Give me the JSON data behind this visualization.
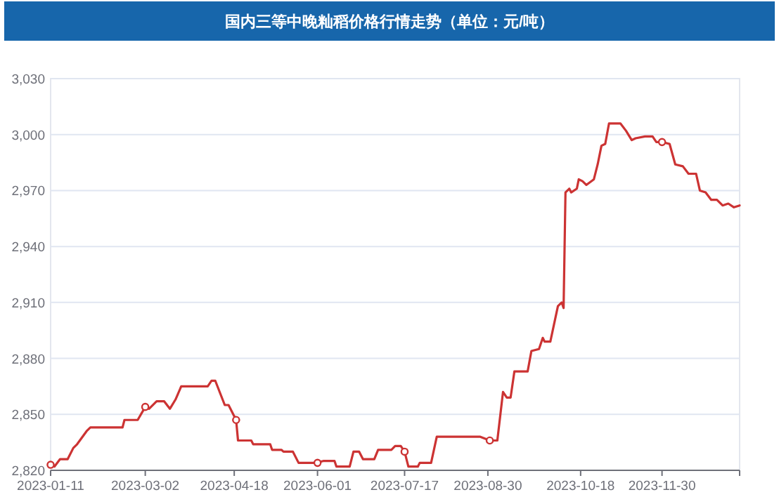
{
  "chart_data": {
    "type": "line",
    "title": "国内三等中晚籼稻价格行情走势（单位：元/吨）",
    "x": [
      "2023-01-11",
      "2023-01-13",
      "2023-01-16",
      "2023-01-20",
      "2023-01-23",
      "2023-01-25",
      "2023-01-30",
      "2023-02-01",
      "2023-02-18",
      "2023-02-19",
      "2023-02-26",
      "2023-03-02",
      "2023-03-04",
      "2023-03-08",
      "2023-03-12",
      "2023-03-15",
      "2023-03-18",
      "2023-03-21",
      "2023-04-04",
      "2023-04-06",
      "2023-04-08",
      "2023-04-13",
      "2023-04-15",
      "2023-04-19",
      "2023-04-20",
      "2023-04-27",
      "2023-04-28",
      "2023-05-07",
      "2023-05-08",
      "2023-05-13",
      "2023-05-14",
      "2023-05-19",
      "2023-05-22",
      "2023-05-31",
      "2023-06-04",
      "2023-06-10",
      "2023-06-11",
      "2023-06-18",
      "2023-06-20",
      "2023-06-23",
      "2023-06-25",
      "2023-07-01",
      "2023-07-03",
      "2023-07-10",
      "2023-07-12",
      "2023-07-15",
      "2023-07-17",
      "2023-07-19",
      "2023-07-24",
      "2023-07-25",
      "2023-07-31",
      "2023-08-03",
      "2023-08-07",
      "2023-08-10",
      "2023-08-26",
      "2023-08-31",
      "2023-09-04",
      "2023-09-07",
      "2023-09-09",
      "2023-09-11",
      "2023-09-13",
      "2023-09-20",
      "2023-09-22",
      "2023-09-26",
      "2023-09-28",
      "2023-09-29",
      "2023-10-02",
      "2023-10-06",
      "2023-10-08",
      "2023-10-09",
      "2023-10-10",
      "2023-10-12",
      "2023-10-13",
      "2023-10-16",
      "2023-10-17",
      "2023-10-19",
      "2023-10-21",
      "2023-10-25",
      "2023-10-27",
      "2023-10-29",
      "2023-10-31",
      "2023-11-02",
      "2023-11-05",
      "2023-11-08",
      "2023-11-11",
      "2023-11-14",
      "2023-11-16",
      "2023-11-21",
      "2023-11-25",
      "2023-11-27",
      "2023-11-30",
      "2023-12-04",
      "2023-12-07",
      "2023-12-11",
      "2023-12-14",
      "2023-12-18",
      "2023-12-20",
      "2023-12-23",
      "2023-12-26",
      "2023-12-29",
      "2024-01-01",
      "2024-01-04",
      "2024-01-07",
      "2024-01-10"
    ],
    "series": [
      {
        "color": "#cc3333",
        "values": [
          2823,
          2822,
          2826,
          2826,
          2832,
          2834,
          2841,
          2843,
          2843,
          2847,
          2847,
          2854,
          2853,
          2857,
          2857,
          2853,
          2858,
          2865,
          2865,
          2868,
          2868,
          2855,
          2855,
          2847,
          2836,
          2836,
          2834,
          2834,
          2831,
          2831,
          2830,
          2830,
          2824,
          2824,
          2825,
          2825,
          2822,
          2822,
          2830,
          2830,
          2826,
          2826,
          2831,
          2831,
          2833,
          2833,
          2830,
          2822,
          2822,
          2824,
          2824,
          2838,
          2838,
          2838,
          2838,
          2836,
          2836,
          2862,
          2859,
          2859,
          2873,
          2873,
          2884,
          2885,
          2891,
          2889,
          2889,
          2908,
          2910,
          2907,
          2969,
          2971,
          2969,
          2971,
          2976,
          2975,
          2973,
          2976,
          2984,
          2994,
          2995,
          3006,
          3006,
          3006,
          3002,
          2997,
          2998,
          2999,
          2999,
          2996,
          2996,
          2995,
          2984,
          2983,
          2979,
          2979,
          2970,
          2969,
          2965,
          2965,
          2962,
          2963,
          2961,
          2962
        ]
      },
      {
        "type": "scatter",
        "color": "#cc3333",
        "marker": "circle",
        "x": [
          "2023-01-11",
          "2023-03-02",
          "2023-04-19",
          "2023-06-01",
          "2023-07-17",
          "2023-08-31",
          "2023-11-30"
        ],
        "values": [
          2823,
          2854,
          2847,
          2824,
          2830,
          2836,
          2996
        ]
      }
    ],
    "xlim": [
      "2023-01-11",
      "2024-01-10"
    ],
    "xticks": [
      {
        "value": "2023-01-11",
        "label": "2023-01-11"
      },
      {
        "value": "2023-03-02",
        "label": "2023-03-02"
      },
      {
        "value": "2023-04-18",
        "label": "2023-04-18"
      },
      {
        "value": "2023-06-01",
        "label": "2023-06-01"
      },
      {
        "value": "2023-07-17",
        "label": "2023-07-17"
      },
      {
        "value": "2023-08-30",
        "label": "2023-08-30"
      },
      {
        "value": "2023-10-18",
        "label": "2023-10-18"
      },
      {
        "value": "2023-11-30",
        "label": "2023-11-30"
      },
      {
        "value": "2024-01-10",
        "label": null
      }
    ],
    "ylim": [
      2820,
      3030
    ],
    "yticks": [
      {
        "value": 2820,
        "label": "2,820"
      },
      {
        "value": 2850,
        "label": "2,850"
      },
      {
        "value": 2880,
        "label": "2,880"
      },
      {
        "value": 2910,
        "label": "2,910"
      },
      {
        "value": 2940,
        "label": "2,940"
      },
      {
        "value": 2970,
        "label": "2,970"
      },
      {
        "value": 3000,
        "label": "3,000"
      },
      {
        "value": 3030,
        "label": "3,030"
      }
    ],
    "grid": "y"
  }
}
